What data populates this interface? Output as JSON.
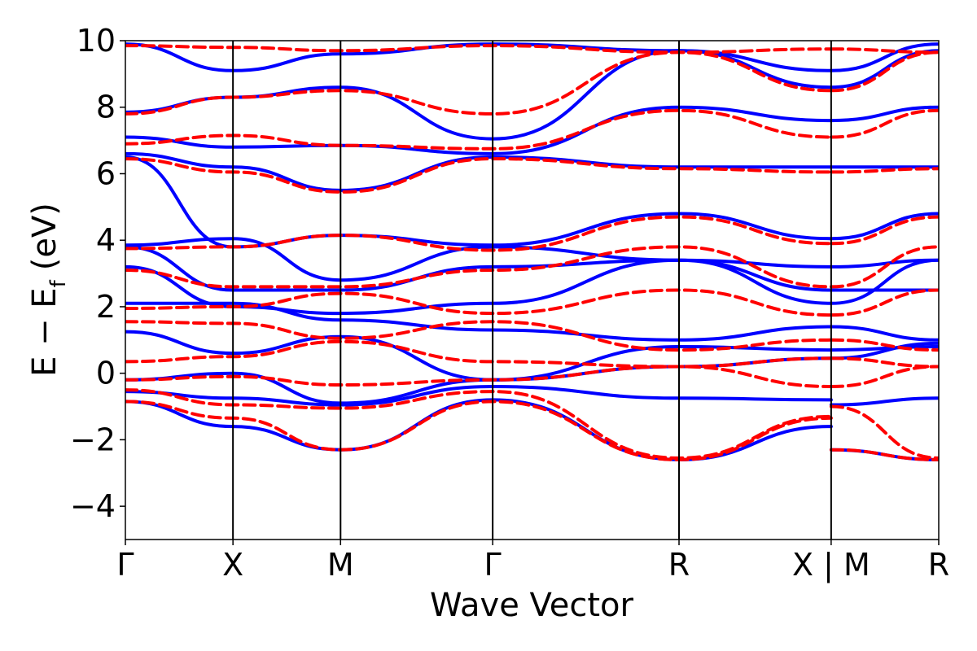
{
  "chart_data": {
    "type": "line",
    "xlabel": "Wave Vector",
    "ylabel": {
      "main": "E − E",
      "sub": "f",
      "unit": "(eV)"
    },
    "ylim": [
      -5,
      10
    ],
    "y_ticks": [
      -4,
      -2,
      0,
      2,
      4,
      6,
      8,
      10
    ],
    "y_tick_labels": [
      "−4",
      "−2",
      "0",
      "2",
      "4",
      "6",
      "8",
      "10"
    ],
    "k_path": [
      {
        "label": "Γ",
        "x": 0.0
      },
      {
        "label": "X",
        "x": 0.5
      },
      {
        "label": "M",
        "x": 1.0
      },
      {
        "label": "Γ",
        "x": 1.707
      },
      {
        "label": "R",
        "x": 2.573
      },
      {
        "label": "X | M",
        "x": 3.28
      },
      {
        "label": "R",
        "x": 3.78
      }
    ],
    "xlim": [
      0,
      3.78
    ],
    "grid": false,
    "series": [
      {
        "style": "solid",
        "color": "#0000ff",
        "bands": [
          {
            "x": [
              0,
              0.5,
              1.0,
              1.707,
              2.573,
              3.28
            ],
            "y": [
              -0.85,
              -1.6,
              -2.3,
              -0.8,
              -2.6,
              -1.6
            ]
          },
          {
            "x": [
              3.28,
              3.78
            ],
            "y": [
              -2.3,
              -2.6
            ]
          },
          {
            "x": [
              0,
              0.5,
              1.0,
              1.707,
              2.573,
              3.28
            ],
            "y": [
              -0.55,
              -0.75,
              -0.95,
              -0.4,
              -0.75,
              -0.8
            ]
          },
          {
            "x": [
              3.28,
              3.78
            ],
            "y": [
              -0.95,
              -0.75
            ]
          },
          {
            "x": [
              0,
              0.5,
              1.0,
              1.707,
              2.573,
              3.28
            ],
            "y": [
              -0.2,
              0.0,
              -0.9,
              -0.2,
              0.2,
              0.45
            ]
          },
          {
            "x": [
              3.28,
              3.78
            ],
            "y": [
              0.45,
              0.9
            ]
          },
          {
            "x": [
              0,
              0.5,
              1.0,
              1.707,
              2.573,
              3.28
            ],
            "y": [
              1.25,
              0.6,
              1.1,
              -0.2,
              0.8,
              0.7
            ]
          },
          {
            "x": [
              3.28,
              3.78
            ],
            "y": [
              0.7,
              0.8
            ]
          },
          {
            "x": [
              0,
              0.5,
              1.0,
              1.707,
              2.573,
              3.28
            ],
            "y": [
              2.1,
              2.1,
              1.6,
              1.3,
              1.0,
              1.4
            ]
          },
          {
            "x": [
              3.28,
              3.78
            ],
            "y": [
              1.4,
              1.0
            ]
          },
          {
            "x": [
              0,
              0.5,
              1.0,
              1.707,
              2.573,
              3.28
            ],
            "y": [
              3.2,
              2.0,
              1.8,
              2.1,
              3.4,
              2.1
            ]
          },
          {
            "x": [
              3.28,
              3.78
            ],
            "y": [
              2.1,
              3.4
            ]
          },
          {
            "x": [
              0,
              0.5,
              1.0,
              1.707,
              2.573,
              3.28
            ],
            "y": [
              3.8,
              2.5,
              2.5,
              3.2,
              3.4,
              2.5
            ]
          },
          {
            "x": [
              3.28,
              3.78
            ],
            "y": [
              2.5,
              2.5
            ]
          },
          {
            "x": [
              0,
              0.5,
              1.0,
              1.707,
              2.573,
              3.28
            ],
            "y": [
              3.85,
              4.05,
              2.8,
              3.8,
              3.4,
              3.2
            ]
          },
          {
            "x": [
              3.28,
              3.78
            ],
            "y": [
              3.2,
              3.4
            ]
          },
          {
            "x": [
              0,
              0.5,
              1.0,
              1.707,
              2.573,
              3.28
            ],
            "y": [
              6.5,
              3.8,
              4.15,
              3.85,
              4.8,
              4.05
            ]
          },
          {
            "x": [
              3.28,
              3.78
            ],
            "y": [
              4.05,
              4.8
            ]
          },
          {
            "x": [
              0,
              0.5,
              1.0,
              1.707,
              2.573,
              3.28
            ],
            "y": [
              6.6,
              6.2,
              5.5,
              6.5,
              6.2,
              6.2
            ]
          },
          {
            "x": [
              3.28,
              3.78
            ],
            "y": [
              6.2,
              6.2
            ]
          },
          {
            "x": [
              0,
              0.5,
              1.0,
              1.707,
              2.573,
              3.28
            ],
            "y": [
              7.1,
              6.8,
              6.85,
              6.6,
              8.0,
              7.6
            ]
          },
          {
            "x": [
              3.28,
              3.78
            ],
            "y": [
              7.6,
              8.0
            ]
          },
          {
            "x": [
              0,
              0.5,
              1.0,
              1.707,
              2.573,
              3.28
            ],
            "y": [
              7.85,
              8.3,
              8.6,
              7.05,
              9.7,
              8.6
            ]
          },
          {
            "x": [
              3.28,
              3.78
            ],
            "y": [
              8.6,
              9.7
            ]
          },
          {
            "x": [
              0,
              0.5,
              1.0,
              1.707,
              2.573,
              3.28
            ],
            "y": [
              9.9,
              9.1,
              9.6,
              9.9,
              9.7,
              9.1
            ]
          },
          {
            "x": [
              3.28,
              3.78
            ],
            "y": [
              9.1,
              9.9
            ]
          }
        ]
      },
      {
        "style": "dashed",
        "color": "#ff0000",
        "bands": [
          {
            "x": [
              0,
              0.5,
              1.0,
              1.707,
              2.573,
              3.28
            ],
            "y": [
              -0.85,
              -1.35,
              -2.3,
              -0.85,
              -2.6,
              -1.35
            ]
          },
          {
            "x": [
              3.28,
              3.78
            ],
            "y": [
              -2.3,
              -2.6
            ]
          },
          {
            "x": [
              0,
              0.5,
              1.0,
              1.707,
              2.573,
              3.28
            ],
            "y": [
              -0.5,
              -0.95,
              -1.05,
              -0.55,
              -2.55,
              -1.3
            ]
          },
          {
            "x": [
              3.28,
              3.78
            ],
            "y": [
              -1.0,
              -2.55
            ]
          },
          {
            "x": [
              0,
              0.5,
              1.0,
              1.707,
              2.573,
              3.28
            ],
            "y": [
              -0.2,
              -0.1,
              -0.35,
              -0.2,
              0.2,
              -0.4
            ]
          },
          {
            "x": [
              3.28,
              3.78
            ],
            "y": [
              -0.4,
              0.2
            ]
          },
          {
            "x": [
              0,
              0.5,
              1.0,
              1.707,
              2.573,
              3.28
            ],
            "y": [
              0.35,
              0.5,
              0.95,
              0.35,
              0.2,
              0.45
            ]
          },
          {
            "x": [
              3.28,
              3.78
            ],
            "y": [
              0.45,
              0.2
            ]
          },
          {
            "x": [
              0,
              0.5,
              1.0,
              1.707,
              2.573,
              3.28
            ],
            "y": [
              1.55,
              1.5,
              1.05,
              1.55,
              0.7,
              1.0
            ]
          },
          {
            "x": [
              3.28,
              3.78
            ],
            "y": [
              1.0,
              0.7
            ]
          },
          {
            "x": [
              0,
              0.5,
              1.0,
              1.707,
              2.573,
              3.28
            ],
            "y": [
              1.95,
              2.0,
              2.4,
              1.8,
              2.5,
              1.75
            ]
          },
          {
            "x": [
              3.28,
              3.78
            ],
            "y": [
              1.75,
              2.5
            ]
          },
          {
            "x": [
              0,
              0.5,
              1.0,
              1.707,
              2.573,
              3.28
            ],
            "y": [
              3.1,
              2.6,
              2.6,
              3.1,
              3.8,
              2.6
            ]
          },
          {
            "x": [
              3.28,
              3.78
            ],
            "y": [
              2.6,
              3.8
            ]
          },
          {
            "x": [
              0,
              0.5,
              1.0,
              1.707,
              2.573,
              3.28
            ],
            "y": [
              3.75,
              3.8,
              4.15,
              3.7,
              4.7,
              3.9
            ]
          },
          {
            "x": [
              3.28,
              3.78
            ],
            "y": [
              3.9,
              4.7
            ]
          },
          {
            "x": [
              0,
              0.5,
              1.0,
              1.707,
              2.573,
              3.28
            ],
            "y": [
              6.45,
              6.05,
              5.45,
              6.45,
              6.15,
              6.05
            ]
          },
          {
            "x": [
              3.28,
              3.78
            ],
            "y": [
              6.05,
              6.15
            ]
          },
          {
            "x": [
              0,
              0.5,
              1.0,
              1.707,
              2.573,
              3.28
            ],
            "y": [
              6.9,
              7.15,
              6.85,
              6.75,
              7.9,
              7.1
            ]
          },
          {
            "x": [
              3.28,
              3.78
            ],
            "y": [
              7.1,
              7.9
            ]
          },
          {
            "x": [
              0,
              0.5,
              1.0,
              1.707,
              2.573,
              3.28
            ],
            "y": [
              7.8,
              8.3,
              8.5,
              7.8,
              9.65,
              8.5
            ]
          },
          {
            "x": [
              3.28,
              3.78
            ],
            "y": [
              8.5,
              9.65
            ]
          },
          {
            "x": [
              0,
              0.5,
              1.0,
              1.707,
              2.573,
              3.28
            ],
            "y": [
              9.85,
              9.8,
              9.7,
              9.85,
              9.65,
              9.75
            ]
          },
          {
            "x": [
              3.28,
              3.78
            ],
            "y": [
              9.75,
              9.65
            ]
          }
        ]
      }
    ]
  }
}
